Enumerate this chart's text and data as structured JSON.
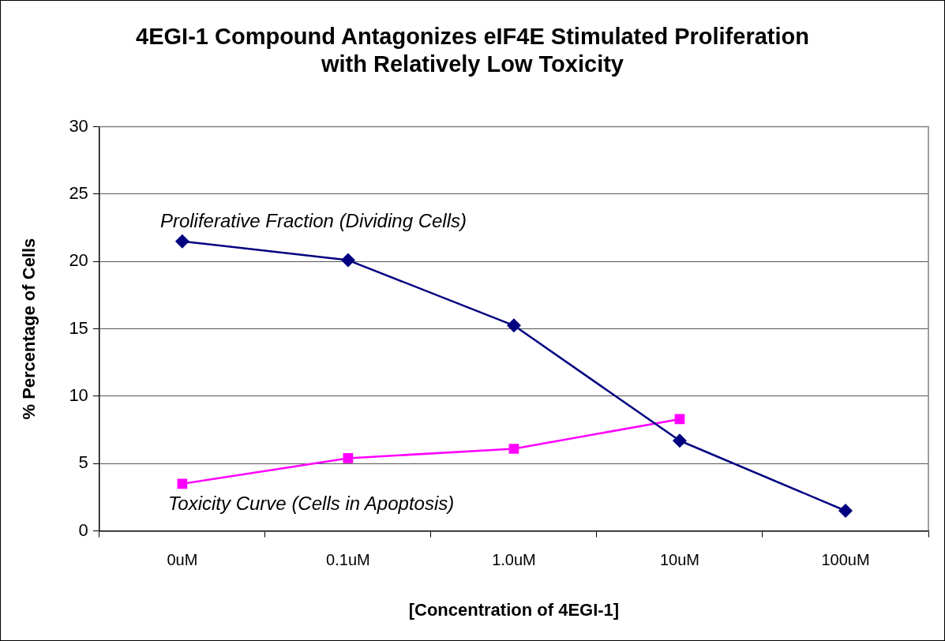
{
  "chart_data": {
    "type": "line",
    "title": "4EGI-1 Compound Antagonizes eIF4E Stimulated Proliferation\nwith Relatively Low Toxicity",
    "xlabel": "[Concentration of 4EGI-1]",
    "ylabel": "% Percentage of Cells",
    "categories": [
      "0uM",
      "0.1uM",
      "1.0uM",
      "10uM",
      "100uM"
    ],
    "series": [
      {
        "name": "Proliferative Fraction (Dividing Cells)",
        "color": "#000080",
        "marker": "diamond",
        "values": [
          21.5,
          20.1,
          15.25,
          6.7,
          1.5
        ]
      },
      {
        "name": "Toxicity Curve (Cells in Apoptosis)",
        "color": "#ff00ff",
        "marker": "square",
        "values": [
          3.5,
          5.4,
          6.1,
          8.3,
          null
        ]
      }
    ],
    "ylim": [
      0,
      30
    ],
    "yticks": [
      0,
      5,
      10,
      15,
      20,
      25,
      30
    ],
    "grid": "y",
    "legend": false
  }
}
